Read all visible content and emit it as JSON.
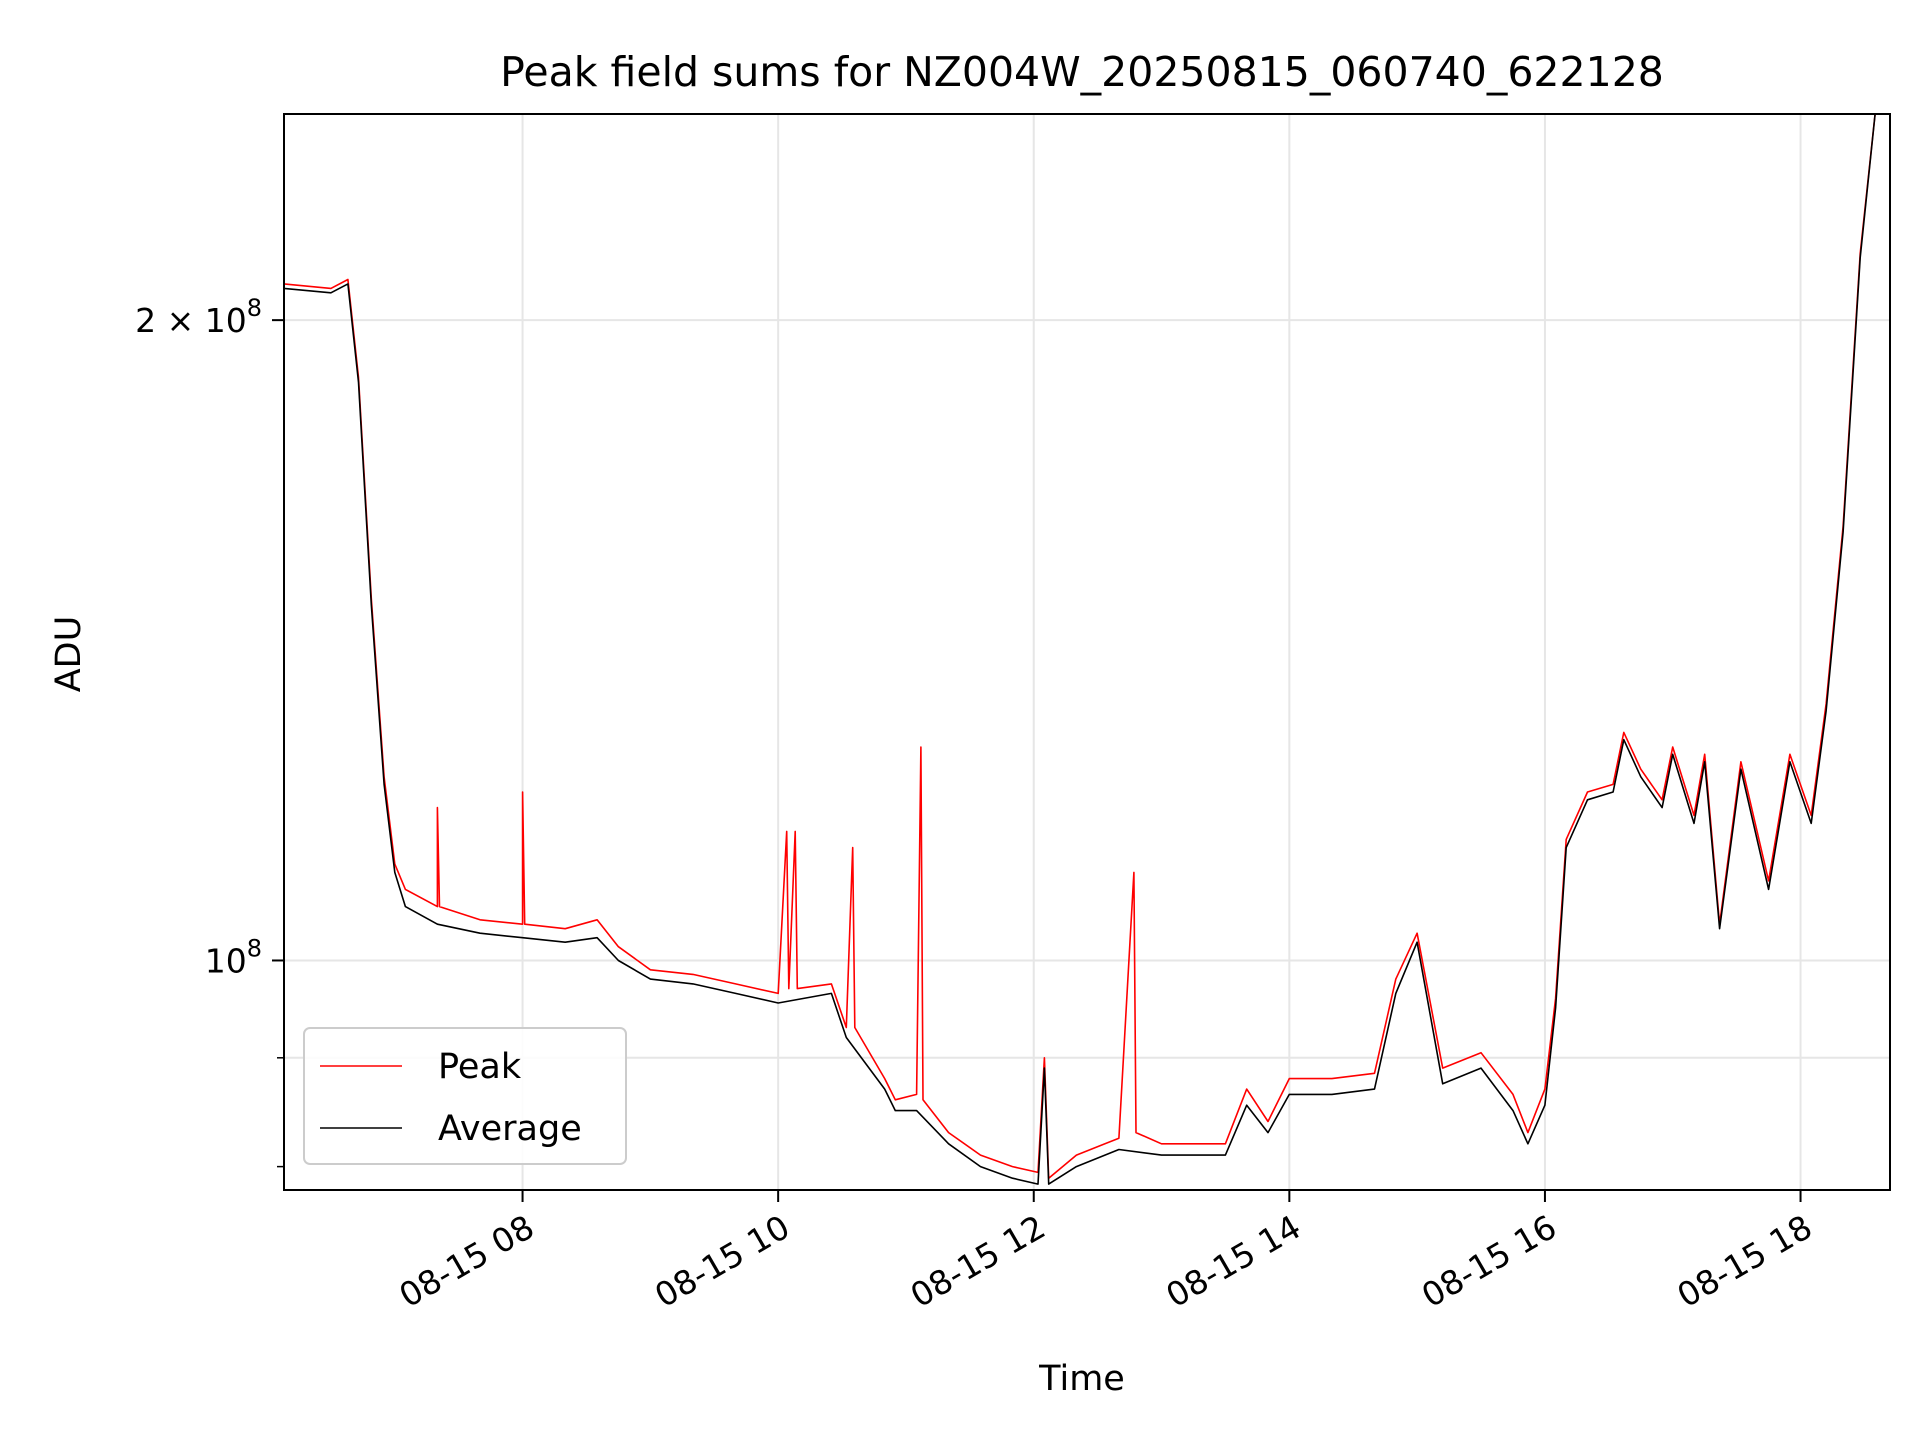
{
  "chart_data": {
    "type": "line",
    "title": "Peak field sums for NZ004W_20250815_060740_622128",
    "xlabel": "Time",
    "ylabel": "ADU",
    "y_scale": "log",
    "x_unit": "hours",
    "xlim": [
      "08-15 06:08",
      "08-15 18:42"
    ],
    "ylim": [
      78000000,
      250000000
    ],
    "x_ticks": [
      {
        "value": "08-15 08:00",
        "label": "08-15 08"
      },
      {
        "value": "08-15 10:00",
        "label": "08-15 10"
      },
      {
        "value": "08-15 12:00",
        "label": "08-15 12"
      },
      {
        "value": "08-15 14:00",
        "label": "08-15 14"
      },
      {
        "value": "08-15 16:00",
        "label": "08-15 16"
      },
      {
        "value": "08-15 18:00",
        "label": "08-15 18"
      }
    ],
    "y_major_ticks": [
      {
        "value": 100000000,
        "base": "10",
        "exp": "8"
      },
      {
        "value": 200000000,
        "base": "2 × 10",
        "exp": "8"
      }
    ],
    "grid": true,
    "legend": "lower-left",
    "colors": {
      "peak": "#ff0000",
      "average": "#000000",
      "grid": "#e6e6e6"
    },
    "series": [
      {
        "name": "Peak",
        "color": "#ff0000",
        "points": [
          [
            "08-15 06:08",
            208000000
          ],
          [
            "08-15 06:30",
            207000000
          ],
          [
            "08-15 06:38",
            209000000
          ],
          [
            "08-15 06:43",
            188000000
          ],
          [
            "08-15 06:49",
            148000000
          ],
          [
            "08-15 06:55",
            122000000
          ],
          [
            "08-15 07:00",
            111000000
          ],
          [
            "08-15 07:05",
            108000000
          ],
          [
            "08-15 07:20",
            106000000
          ],
          [
            "08-15 07:20",
            118000000
          ],
          [
            "08-15 07:21",
            106000000
          ],
          [
            "08-15 07:40",
            104500000
          ],
          [
            "08-15 08:00",
            104000000
          ],
          [
            "08-15 08:00",
            120000000
          ],
          [
            "08-15 08:01",
            104000000
          ],
          [
            "08-15 08:20",
            103500000
          ],
          [
            "08-15 08:35",
            104500000
          ],
          [
            "08-15 08:45",
            101500000
          ],
          [
            "08-15 09:00",
            99000000
          ],
          [
            "08-15 09:20",
            98500000
          ],
          [
            "08-15 09:40",
            97500000
          ],
          [
            "08-15 10:00",
            96500000
          ],
          [
            "08-15 10:04",
            115000000
          ],
          [
            "08-15 10:05",
            97000000
          ],
          [
            "08-15 10:08",
            115000000
          ],
          [
            "08-15 10:09",
            97000000
          ],
          [
            "08-15 10:25",
            97500000
          ],
          [
            "08-15 10:32",
            93000000
          ],
          [
            "08-15 10:35",
            113000000
          ],
          [
            "08-15 10:36",
            93000000
          ],
          [
            "08-15 10:50",
            88000000
          ],
          [
            "08-15 10:55",
            86000000
          ],
          [
            "08-15 11:05",
            86500000
          ],
          [
            "08-15 11:07",
            126000000
          ],
          [
            "08-15 11:08",
            86000000
          ],
          [
            "08-15 11:20",
            83000000
          ],
          [
            "08-15 11:35",
            81000000
          ],
          [
            "08-15 11:50",
            80000000
          ],
          [
            "08-15 12:02",
            79500000
          ],
          [
            "08-15 12:05",
            90000000
          ],
          [
            "08-15 12:07",
            79000000
          ],
          [
            "08-15 12:20",
            81000000
          ],
          [
            "08-15 12:40",
            82500000
          ],
          [
            "08-15 12:47",
            110000000
          ],
          [
            "08-15 12:48",
            83000000
          ],
          [
            "08-15 13:00",
            82000000
          ],
          [
            "08-15 13:30",
            82000000
          ],
          [
            "08-15 13:40",
            87000000
          ],
          [
            "08-15 13:50",
            84000000
          ],
          [
            "08-15 14:00",
            88000000
          ],
          [
            "08-15 14:20",
            88000000
          ],
          [
            "08-15 14:40",
            88500000
          ],
          [
            "08-15 14:50",
            98000000
          ],
          [
            "08-15 15:00",
            103000000
          ],
          [
            "08-15 15:12",
            89000000
          ],
          [
            "08-15 15:30",
            90500000
          ],
          [
            "08-15 15:45",
            86500000
          ],
          [
            "08-15 15:52",
            83000000
          ],
          [
            "08-15 16:00",
            87000000
          ],
          [
            "08-15 16:05",
            96000000
          ],
          [
            "08-15 16:10",
            114000000
          ],
          [
            "08-15 16:20",
            120000000
          ],
          [
            "08-15 16:32",
            121000000
          ],
          [
            "08-15 16:37",
            128000000
          ],
          [
            "08-15 16:45",
            123000000
          ],
          [
            "08-15 16:55",
            119000000
          ],
          [
            "08-15 17:00",
            126000000
          ],
          [
            "08-15 17:10",
            117000000
          ],
          [
            "08-15 17:15",
            125000000
          ],
          [
            "08-15 17:22",
            104000000
          ],
          [
            "08-15 17:32",
            124000000
          ],
          [
            "08-15 17:45",
            109000000
          ],
          [
            "08-15 17:55",
            125000000
          ],
          [
            "08-15 18:05",
            117000000
          ],
          [
            "08-15 18:12",
            132000000
          ],
          [
            "08-15 18:20",
            160000000
          ],
          [
            "08-15 18:28",
            215000000
          ],
          [
            "08-15 18:35",
            250000000
          ]
        ]
      },
      {
        "name": "Average",
        "color": "#000000",
        "points": [
          [
            "08-15 06:08",
            207000000
          ],
          [
            "08-15 06:30",
            206000000
          ],
          [
            "08-15 06:38",
            208000000
          ],
          [
            "08-15 06:43",
            187000000
          ],
          [
            "08-15 06:49",
            147000000
          ],
          [
            "08-15 06:55",
            121000000
          ],
          [
            "08-15 07:00",
            110000000
          ],
          [
            "08-15 07:05",
            106000000
          ],
          [
            "08-15 07:20",
            104000000
          ],
          [
            "08-15 07:40",
            103000000
          ],
          [
            "08-15 08:00",
            102500000
          ],
          [
            "08-15 08:20",
            102000000
          ],
          [
            "08-15 08:35",
            102500000
          ],
          [
            "08-15 08:45",
            100000000
          ],
          [
            "08-15 09:00",
            98000000
          ],
          [
            "08-15 09:20",
            97500000
          ],
          [
            "08-15 09:40",
            96500000
          ],
          [
            "08-15 10:00",
            95500000
          ],
          [
            "08-15 10:25",
            96500000
          ],
          [
            "08-15 10:32",
            92000000
          ],
          [
            "08-15 10:50",
            87000000
          ],
          [
            "08-15 10:55",
            85000000
          ],
          [
            "08-15 11:05",
            85000000
          ],
          [
            "08-15 11:20",
            82000000
          ],
          [
            "08-15 11:35",
            80000000
          ],
          [
            "08-15 11:50",
            79000000
          ],
          [
            "08-15 12:02",
            78500000
          ],
          [
            "08-15 12:05",
            89000000
          ],
          [
            "08-15 12:07",
            78500000
          ],
          [
            "08-15 12:20",
            80000000
          ],
          [
            "08-15 12:40",
            81500000
          ],
          [
            "08-15 13:00",
            81000000
          ],
          [
            "08-15 13:30",
            81000000
          ],
          [
            "08-15 13:40",
            85500000
          ],
          [
            "08-15 13:50",
            83000000
          ],
          [
            "08-15 14:00",
            86500000
          ],
          [
            "08-15 14:20",
            86500000
          ],
          [
            "08-15 14:40",
            87000000
          ],
          [
            "08-15 14:50",
            96500000
          ],
          [
            "08-15 15:00",
            102000000
          ],
          [
            "08-15 15:12",
            87500000
          ],
          [
            "08-15 15:30",
            89000000
          ],
          [
            "08-15 15:45",
            85000000
          ],
          [
            "08-15 15:52",
            82000000
          ],
          [
            "08-15 16:00",
            85500000
          ],
          [
            "08-15 16:05",
            95000000
          ],
          [
            "08-15 16:10",
            113000000
          ],
          [
            "08-15 16:20",
            119000000
          ],
          [
            "08-15 16:32",
            120000000
          ],
          [
            "08-15 16:37",
            127000000
          ],
          [
            "08-15 16:45",
            122000000
          ],
          [
            "08-15 16:55",
            118000000
          ],
          [
            "08-15 17:00",
            125000000
          ],
          [
            "08-15 17:10",
            116000000
          ],
          [
            "08-15 17:15",
            124000000
          ],
          [
            "08-15 17:22",
            103500000
          ],
          [
            "08-15 17:32",
            123000000
          ],
          [
            "08-15 17:45",
            108000000
          ],
          [
            "08-15 17:55",
            124000000
          ],
          [
            "08-15 18:05",
            116000000
          ],
          [
            "08-15 18:12",
            131000000
          ],
          [
            "08-15 18:20",
            159000000
          ],
          [
            "08-15 18:28",
            214000000
          ],
          [
            "08-15 18:35",
            250000000
          ]
        ]
      }
    ]
  }
}
